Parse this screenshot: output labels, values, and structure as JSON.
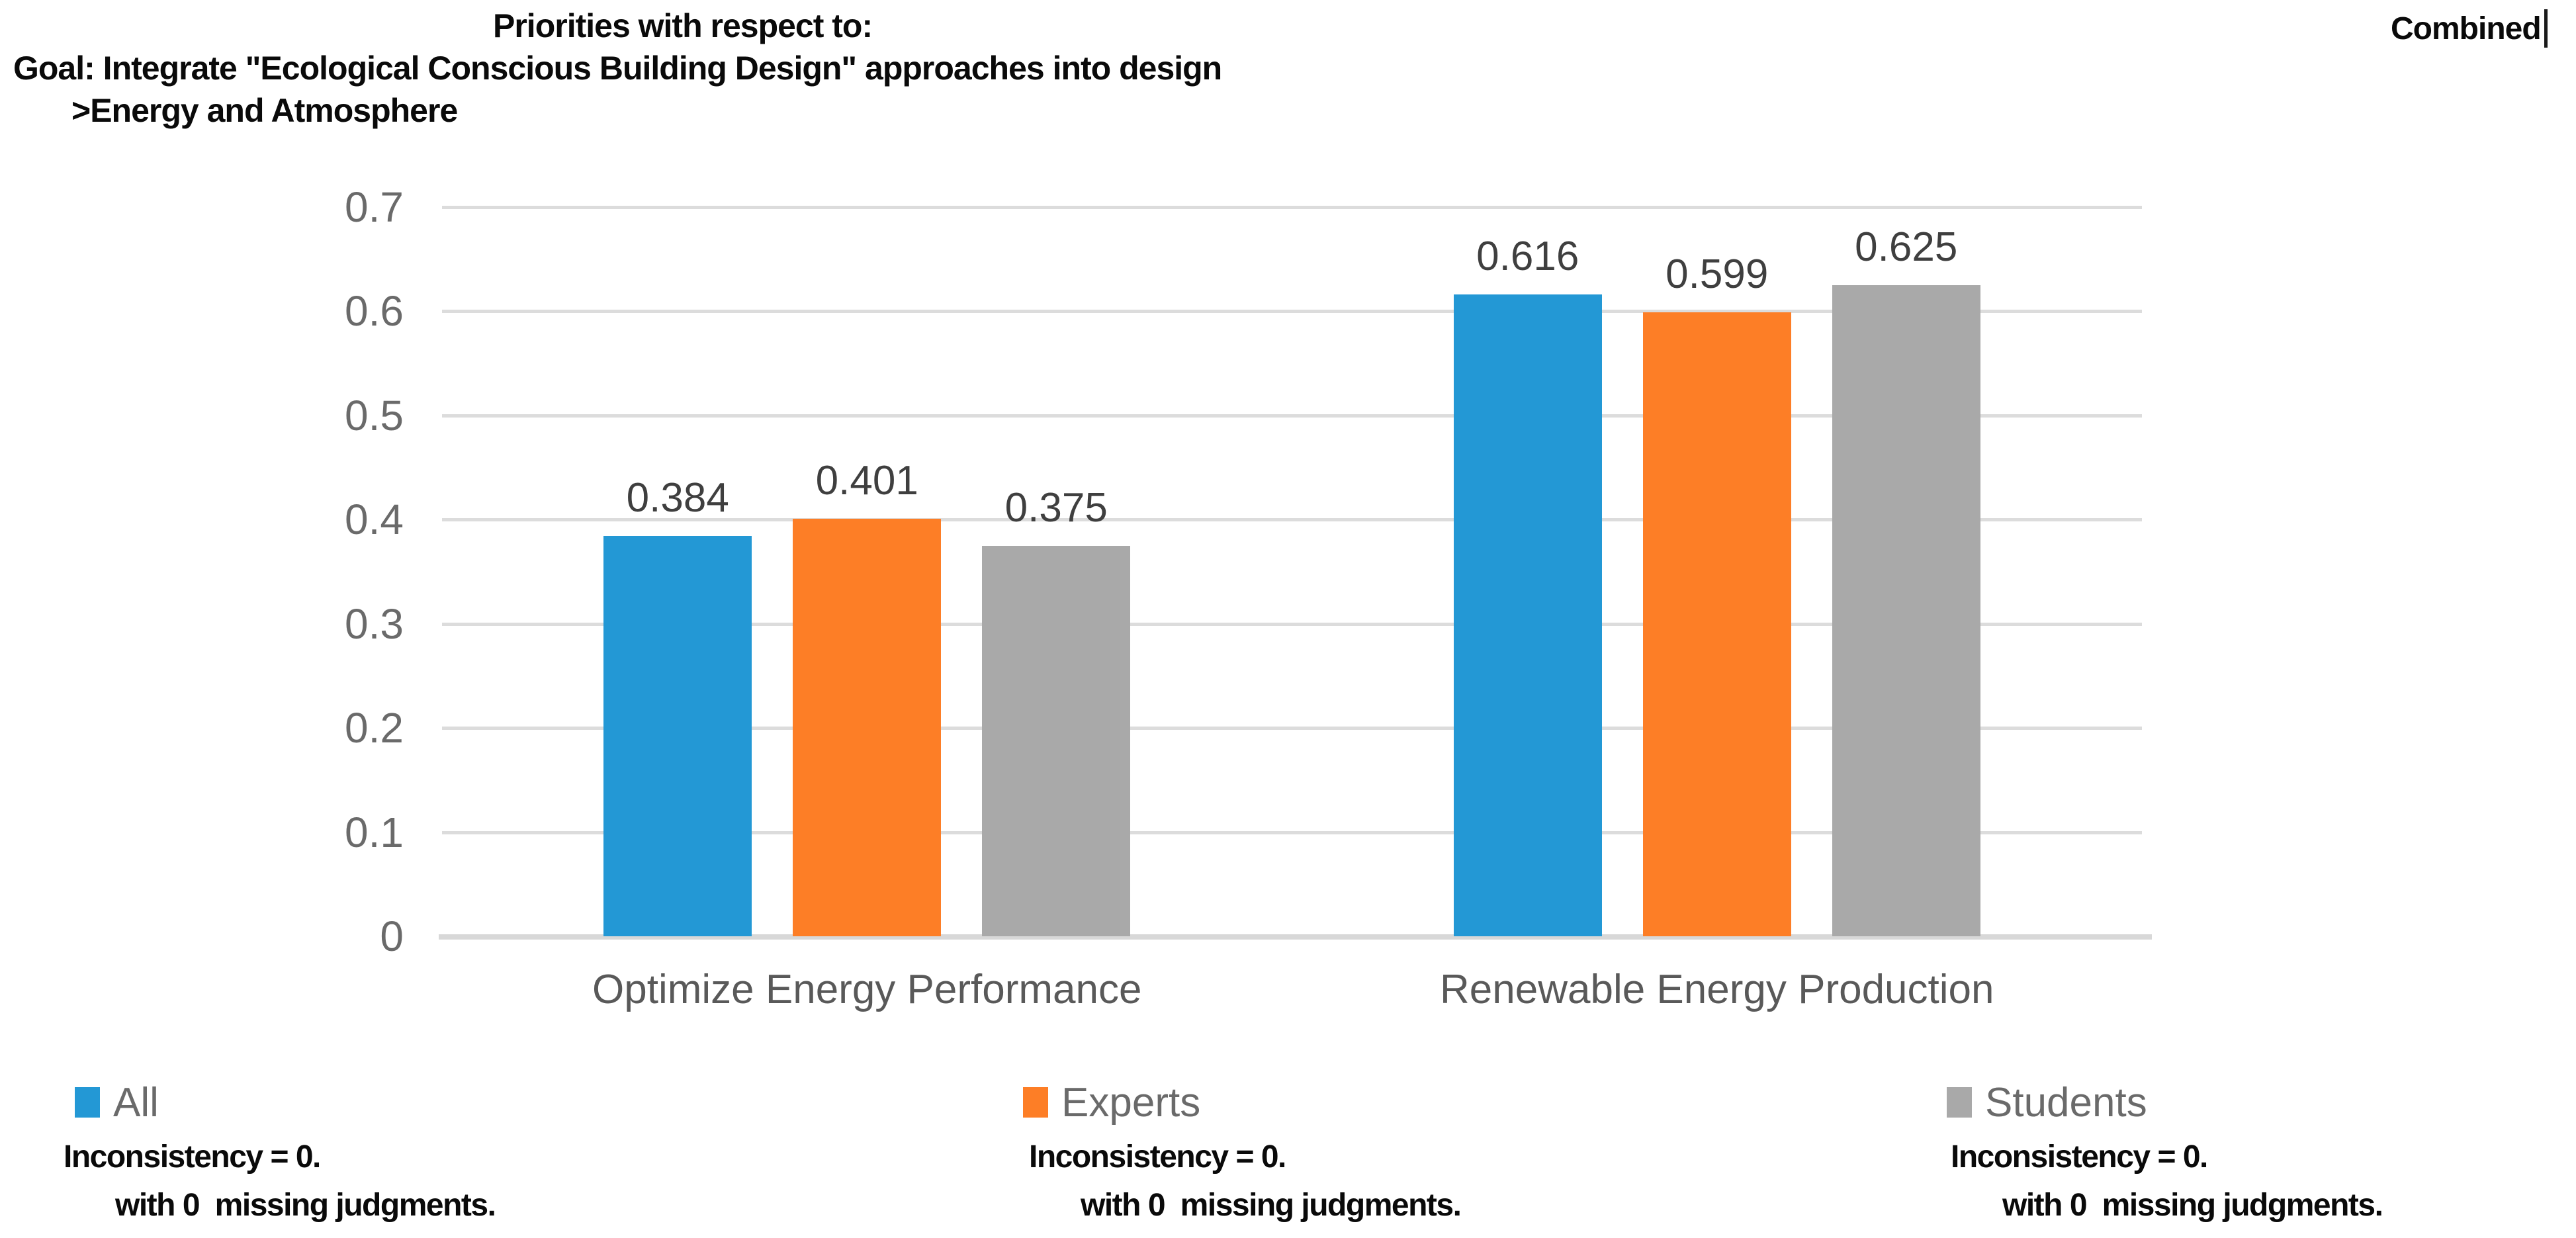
{
  "header": {
    "priorities_label": "Priorities with respect to:",
    "goal_line": "Goal: Integrate \"Ecological Conscious Building Design\" approaches into design",
    "node_line": ">Energy and Atmosphere",
    "combined_label": "Combined"
  },
  "chart_data": {
    "type": "bar",
    "title": "Priorities with respect to: Goal: Integrate \"Ecological Conscious Building Design\" approaches into design >Energy and Atmosphere",
    "subtitle": "Combined",
    "categories": [
      "Optimize Energy Performance",
      "Renewable Energy Production"
    ],
    "series": [
      {
        "name": "All",
        "color": "#2398D5",
        "values": [
          0.384,
          0.616
        ]
      },
      {
        "name": "Experts",
        "color": "#FD7E26",
        "values": [
          0.401,
          0.599
        ]
      },
      {
        "name": "Students",
        "color": "#A9A9A9",
        "values": [
          0.375,
          0.625
        ]
      }
    ],
    "data_labels": [
      [
        "0.384",
        "0.401",
        "0.375"
      ],
      [
        "0.616",
        "0.599",
        "0.625"
      ]
    ],
    "xlabel": "",
    "ylabel": "",
    "ylim": [
      0,
      0.7
    ],
    "yticks": [
      0,
      0.1,
      0.2,
      0.3,
      0.4,
      0.5,
      0.6,
      0.7
    ],
    "ytick_labels": [
      "0",
      "0.1",
      "0.2",
      "0.3",
      "0.4",
      "0.5",
      "0.6",
      "0.7"
    ],
    "value_label_decimals": 3,
    "grid": true,
    "legend_position": "bottom"
  },
  "footnotes": [
    {
      "line1": "Inconsistency = 0.",
      "line2": "with 0  missing judgments."
    },
    {
      "line1": "Inconsistency = 0.",
      "line2": "with 0  missing judgments."
    },
    {
      "line1": "Inconsistency = 0.",
      "line2": "with 0  missing judgments."
    }
  ],
  "colors": {
    "grid": "#DCDCDC",
    "axis_baseline": "#D8D8D8",
    "axis_text": "#6A6A6A",
    "category_text": "#595959",
    "value_label_text": "#3F3F3F",
    "heading_text": "#0A0A0A"
  }
}
